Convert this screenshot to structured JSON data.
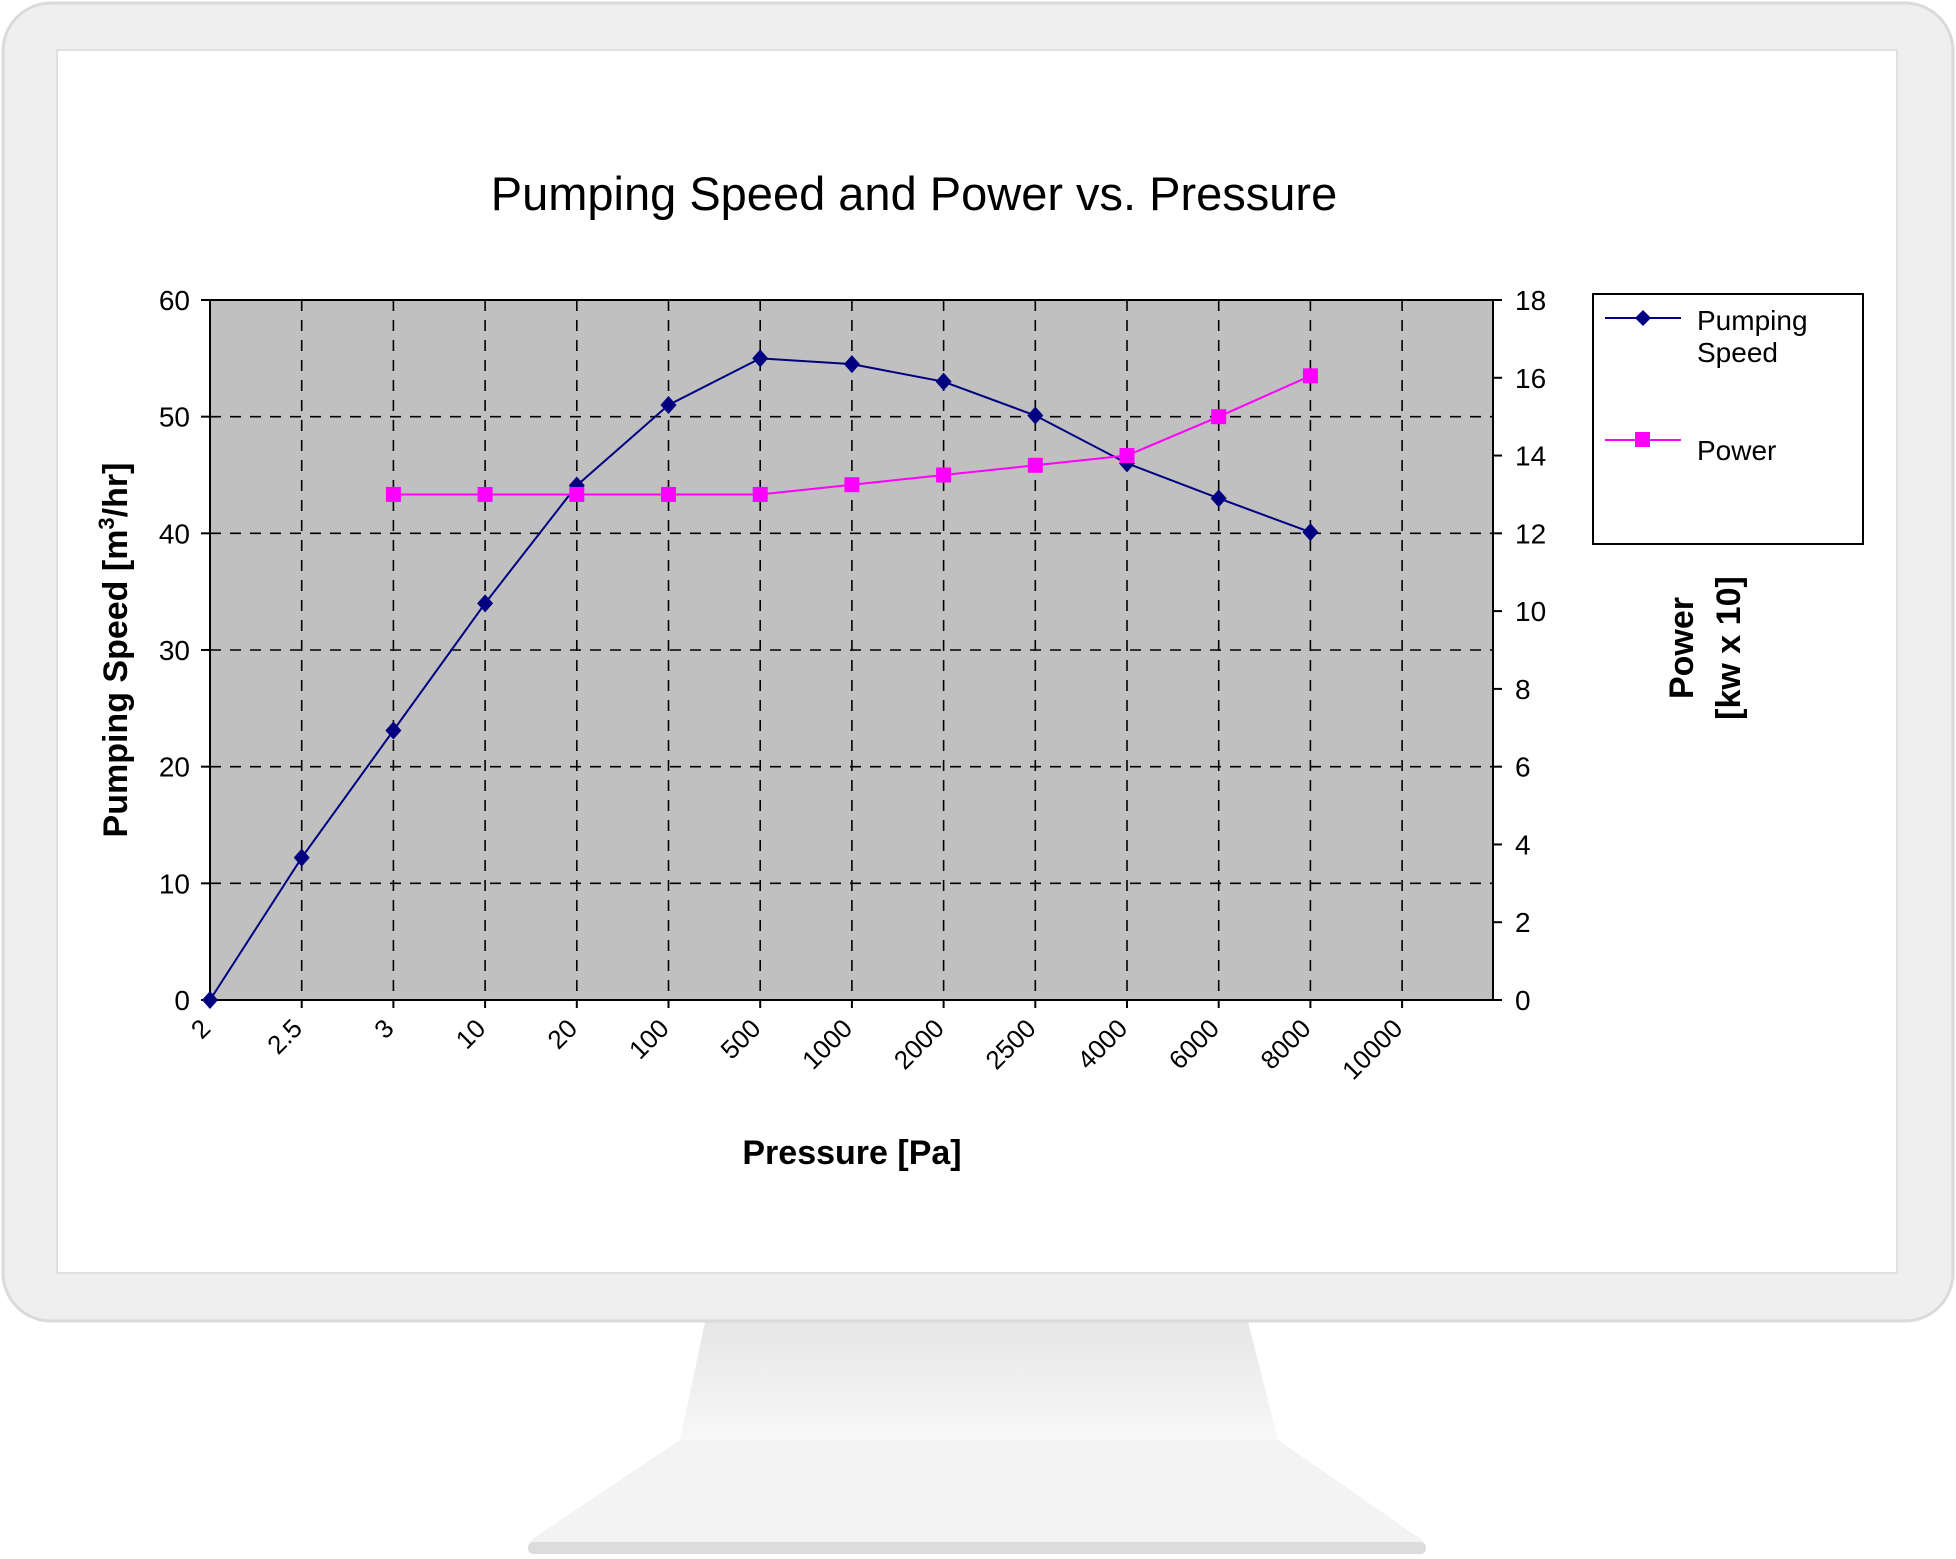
{
  "colors": {
    "plot_background": "#c0c0c0",
    "pumping_speed": "#000080",
    "power": "#ff00ff",
    "monitor_frame": "#eeeeee"
  },
  "chart_data": {
    "type": "line",
    "title": "Pumping Speed and Power vs. Pressure",
    "xlabel": "Pressure [Pa]",
    "ylabel_left": {
      "main": "Pumping Speed [m",
      "sup": "3",
      "tail": "/hr]"
    },
    "ylabel_right": [
      "Power",
      "[kw x 10]"
    ],
    "categories": [
      "2",
      "2.5",
      "3",
      "10",
      "20",
      "100",
      "500",
      "1000",
      "2000",
      "2500",
      "4000",
      "6000",
      "8000",
      "10000"
    ],
    "ylim_left": [
      0,
      60
    ],
    "yticks_left": [
      0,
      10,
      20,
      30,
      40,
      50,
      60
    ],
    "ylim_right": [
      0,
      18
    ],
    "yticks_right": [
      0,
      2,
      4,
      6,
      8,
      10,
      12,
      14,
      16,
      18
    ],
    "grid": true,
    "legend_position": "right",
    "series": [
      {
        "name": "Pumping Speed",
        "axis": "left",
        "marker": "diamond",
        "values": [
          0,
          12.2,
          23.1,
          34,
          44.1,
          51,
          55,
          54.5,
          53,
          50.1,
          46,
          43,
          40.1,
          null
        ]
      },
      {
        "name": "Power",
        "axis": "right",
        "marker": "square",
        "values": [
          null,
          null,
          13,
          13,
          13,
          13,
          13,
          13.25,
          13.5,
          13.75,
          14,
          15,
          16.05,
          null
        ]
      }
    ]
  }
}
